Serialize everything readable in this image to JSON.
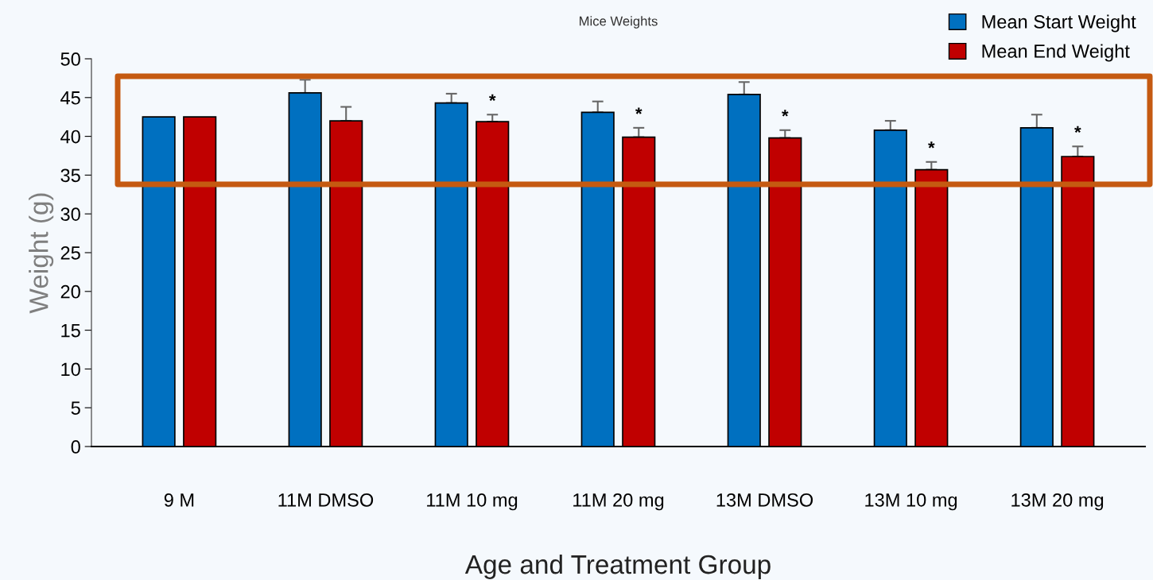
{
  "chart_data": {
    "type": "bar",
    "title": "Mice Weights",
    "xlabel": "Age and Treatment Group",
    "ylabel": "Weight (g)",
    "categories": [
      "9 M",
      "11M DMSO",
      "11M 10 mg",
      "11M 20 mg",
      "13M DMSO",
      "13M 10 mg",
      "13M 20 mg"
    ],
    "series": [
      {
        "name": "Mean Start Weight",
        "color": "#0070c0",
        "values": [
          42.5,
          45.6,
          44.3,
          43.1,
          45.4,
          40.8,
          41.1
        ],
        "errors": [
          null,
          [
            45.6,
            47.3
          ],
          [
            44.3,
            45.5
          ],
          [
            43.1,
            44.5
          ],
          [
            45.4,
            47.0
          ],
          [
            40.8,
            42.0
          ],
          [
            41.1,
            42.8
          ]
        ]
      },
      {
        "name": "Mean End Weight",
        "color": "#c00000",
        "values": [
          42.5,
          42.0,
          41.9,
          39.9,
          39.8,
          35.7,
          37.4
        ],
        "errors": [
          null,
          [
            42.0,
            43.8
          ],
          [
            41.9,
            42.8
          ],
          [
            39.9,
            41.1
          ],
          [
            39.8,
            40.8
          ],
          [
            35.7,
            36.7
          ],
          [
            37.4,
            38.7
          ]
        ],
        "value_labels": [
          null,
          null,
          "*",
          "*",
          "*",
          "*",
          "*"
        ]
      }
    ],
    "ylim": [
      0,
      50
    ],
    "yticks": [
      0,
      5,
      10,
      15,
      20,
      25,
      30,
      35,
      40,
      45,
      50
    ],
    "grid": false,
    "legend": "top right"
  }
}
